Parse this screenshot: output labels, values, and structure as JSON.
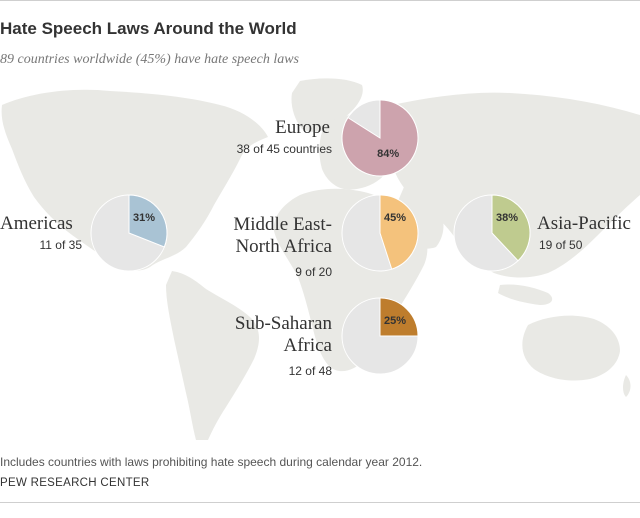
{
  "title": "Hate Speech Laws Around the World",
  "subtitle": "89 countries worldwide (45%) have hate speech laws",
  "note": "Includes countries with laws prohibiting hate speech during calendar year 2012.",
  "source": "PEW RESEARCH CENTER",
  "colors": {
    "map": "#e9e9e5",
    "pie_remainder": "#e6e6e6",
    "europe": "#cda3ad",
    "americas": "#a9c3d4",
    "mena": "#f4c27c",
    "asia_pacific": "#bfcb8f",
    "ssa": "#be7d2d"
  },
  "regions": {
    "europe": {
      "name_lines": [
        "Europe"
      ],
      "count": "38 of 45 countries"
    },
    "americas": {
      "name_lines": [
        "Americas"
      ],
      "count": "11 of 35"
    },
    "mena": {
      "name_lines": [
        "Middle East-",
        "North Africa"
      ],
      "count": "9 of 20"
    },
    "asia_pacific": {
      "name_lines": [
        "Asia-Pacific"
      ],
      "count": "19 of 50"
    },
    "ssa": {
      "name_lines": [
        "Sub-Saharan",
        "Africa"
      ],
      "count": "12 of 48"
    }
  },
  "chart_data": {
    "type": "pie",
    "title": "Hate Speech Laws Around the World",
    "subtitle": "89 countries worldwide (45%) have hate speech laws",
    "pies": [
      {
        "region": "Europe",
        "percent": 84,
        "label": "84%",
        "with_laws": 38,
        "total": 45,
        "color": "#cda3ad"
      },
      {
        "region": "Americas",
        "percent": 31,
        "label": "31%",
        "with_laws": 11,
        "total": 35,
        "color": "#a9c3d4"
      },
      {
        "region": "Middle East-North Africa",
        "percent": 45,
        "label": "45%",
        "with_laws": 9,
        "total": 20,
        "color": "#f4c27c"
      },
      {
        "region": "Asia-Pacific",
        "percent": 38,
        "label": "38%",
        "with_laws": 19,
        "total": 50,
        "color": "#bfcb8f"
      },
      {
        "region": "Sub-Saharan Africa",
        "percent": 25,
        "label": "25%",
        "with_laws": 12,
        "total": 48,
        "color": "#be7d2d"
      }
    ]
  }
}
